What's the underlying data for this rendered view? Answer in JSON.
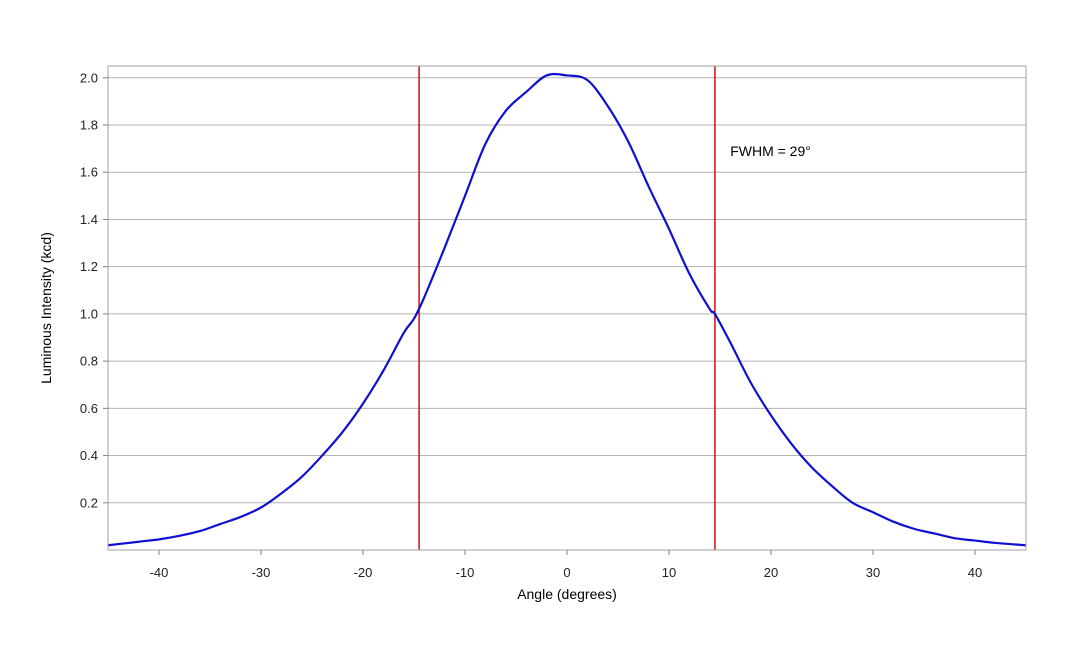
{
  "chart_data": {
    "type": "line",
    "title": "",
    "xlabel": "Angle (degrees)",
    "ylabel": "Luminous Intensity (kcd)",
    "xlim": [
      -45,
      45
    ],
    "ylim": [
      0,
      2.05
    ],
    "x_ticks": [
      -40,
      -30,
      -20,
      -10,
      0,
      10,
      20,
      30,
      40
    ],
    "y_ticks": [
      0.2,
      0.4,
      0.6,
      0.8,
      1.0,
      1.2,
      1.4,
      1.6,
      1.8,
      2.0
    ],
    "x_tick_labels": [
      "-40",
      "-30",
      "-20",
      "-10",
      "0",
      "10",
      "20",
      "30",
      "40"
    ],
    "y_tick_labels": [
      "0.2",
      "0.4",
      "0.6",
      "0.8",
      "1.0",
      "1.2",
      "1.4",
      "1.6",
      "1.8",
      "2.0"
    ],
    "grid": {
      "horizontal": true,
      "vertical": false
    },
    "series": [
      {
        "color": "#1010d0",
        "x": [
          -45,
          -42,
          -40,
          -38,
          -36,
          -34,
          -32,
          -30,
          -28,
          -26,
          -24,
          -22,
          -20,
          -18,
          -16,
          -15,
          -14,
          -12,
          -10,
          -8,
          -6,
          -4,
          -2,
          0,
          2,
          4,
          6,
          8,
          10,
          12,
          14,
          14.5,
          16,
          18,
          20,
          22,
          24,
          26,
          28,
          30,
          32,
          34,
          36,
          38,
          40,
          42,
          45
        ],
        "y": [
          0.02,
          0.035,
          0.045,
          0.06,
          0.08,
          0.11,
          0.14,
          0.18,
          0.24,
          0.31,
          0.4,
          0.5,
          0.62,
          0.76,
          0.92,
          0.98,
          1.07,
          1.28,
          1.5,
          1.72,
          1.86,
          1.94,
          2.01,
          2.01,
          1.99,
          1.88,
          1.73,
          1.54,
          1.36,
          1.17,
          1.02,
          1.0,
          0.88,
          0.71,
          0.57,
          0.45,
          0.35,
          0.27,
          0.2,
          0.16,
          0.12,
          0.09,
          0.07,
          0.05,
          0.04,
          0.03,
          0.02
        ]
      }
    ],
    "vertical_lines": [
      {
        "x": -14.5,
        "color": "#d01010"
      },
      {
        "x": 14.5,
        "color": "#d01010"
      }
    ],
    "annotations": [
      {
        "text": "FWHM = 29°",
        "x": 16,
        "y": 1.69
      }
    ]
  }
}
